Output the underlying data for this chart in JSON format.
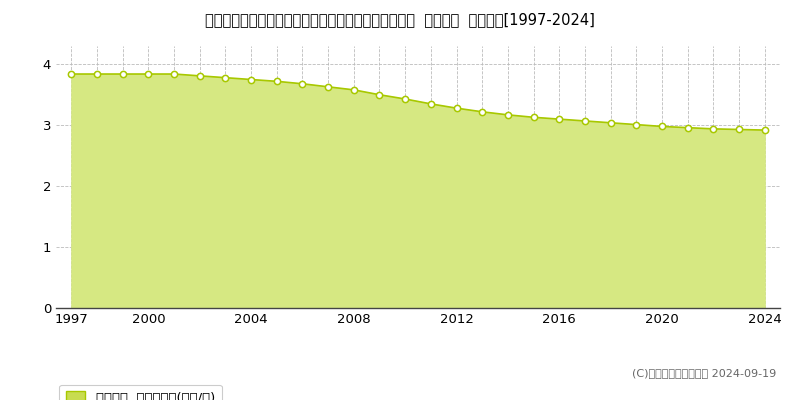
{
  "title": "栃木県塩谷郡高根沢町大字寺渡戸字イコタ３０９番２  基準地価  地価推移[1997-2024]",
  "years": [
    1997,
    1998,
    1999,
    2000,
    2001,
    2002,
    2003,
    2004,
    2005,
    2006,
    2007,
    2008,
    2009,
    2010,
    2011,
    2012,
    2013,
    2014,
    2015,
    2016,
    2017,
    2018,
    2019,
    2020,
    2021,
    2022,
    2023,
    2024
  ],
  "values": [
    3.84,
    3.84,
    3.84,
    3.84,
    3.84,
    3.81,
    3.78,
    3.75,
    3.72,
    3.68,
    3.63,
    3.58,
    3.5,
    3.43,
    3.35,
    3.28,
    3.22,
    3.17,
    3.13,
    3.1,
    3.07,
    3.04,
    3.01,
    2.98,
    2.96,
    2.94,
    2.93,
    2.92
  ],
  "ylim": [
    0,
    4.3
  ],
  "yticks": [
    0,
    1,
    2,
    3,
    4
  ],
  "line_color": "#a8c800",
  "fill_color": "#d6e882",
  "marker_facecolor": "#ffffff",
  "marker_edgecolor": "#a8c800",
  "grid_color": "#bbbbbb",
  "bg_color": "#ffffff",
  "plot_bg_color": "#ffffff",
  "legend_label": "基準地価  平均坪単価(万円/坪)",
  "legend_patch_color": "#c8dc50",
  "legend_patch_edge": "#a8c800",
  "copyright_text": "(C)土地価格ドットコム 2024-09-19",
  "title_fontsize": 10.5,
  "axis_fontsize": 9.5,
  "legend_fontsize": 9.5,
  "copyright_fontsize": 8,
  "xtick_labels": [
    1997,
    2000,
    2004,
    2008,
    2012,
    2016,
    2020,
    2024
  ],
  "xlim_left": 1996.4,
  "xlim_right": 2024.6
}
